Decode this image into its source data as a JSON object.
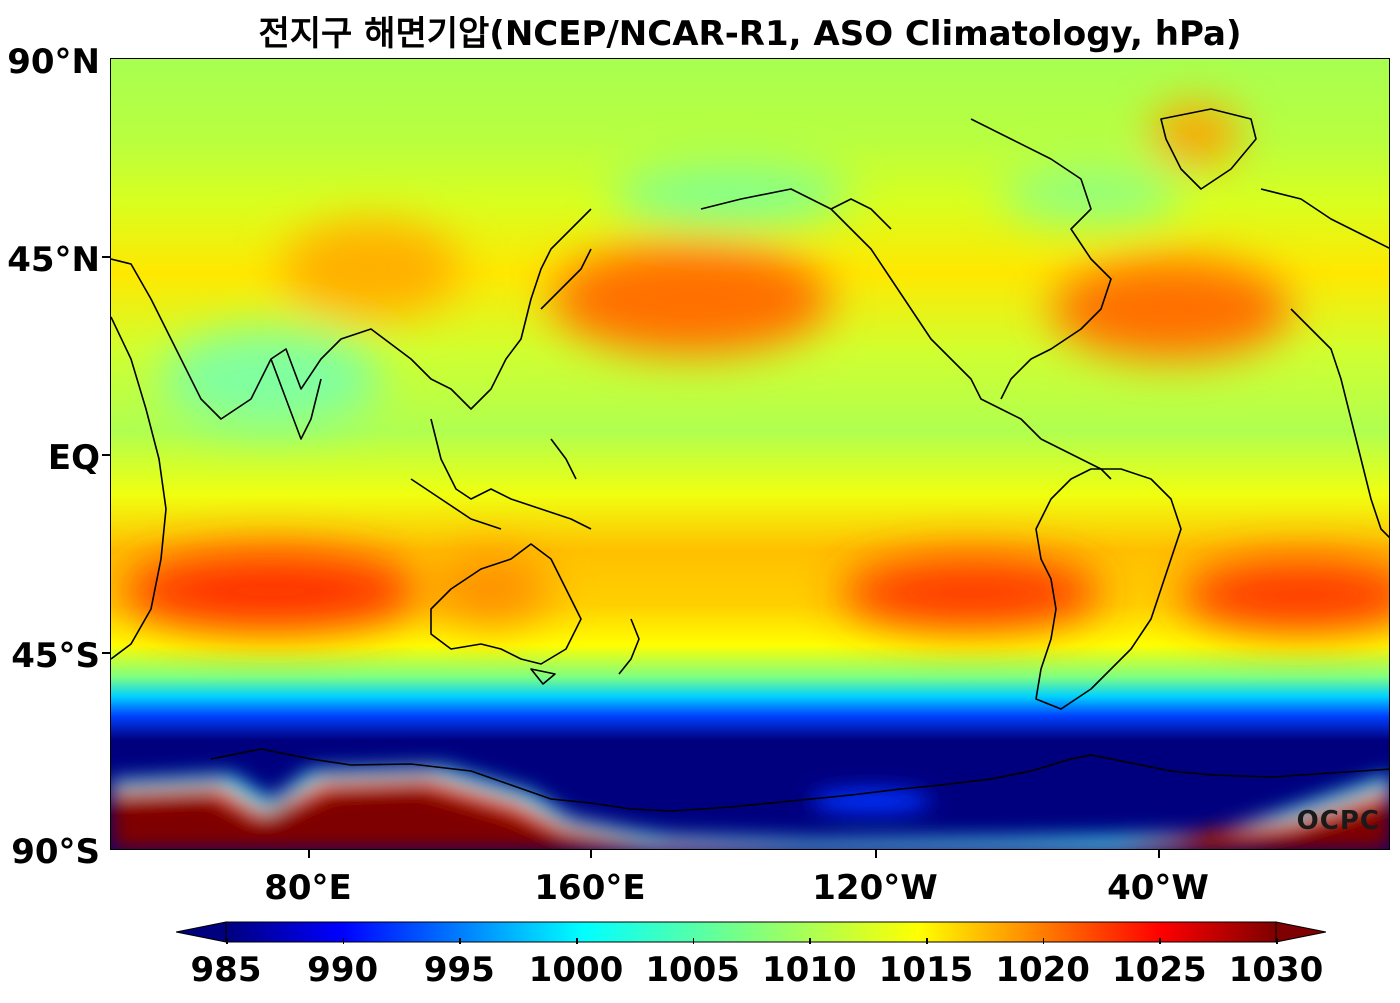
{
  "title": "전지구 해면기압(NCEP/NCAR-R1, ASO Climatology, hPa)",
  "watermark": "OCPC",
  "y_ticks": [
    "90°N",
    "45°N",
    "EQ",
    "45°S",
    "90°S"
  ],
  "x_ticks": [
    "80°E",
    "160°E",
    "120°W",
    "40°W"
  ],
  "colorbar": {
    "ticks": [
      "985",
      "990",
      "995",
      "1000",
      "1005",
      "1010",
      "1015",
      "1020",
      "1025",
      "1030"
    ],
    "min": 985,
    "max": 1030,
    "extend": "both",
    "colormap": "jet"
  },
  "colors": {
    "dark_blue": "#00007f",
    "blue": "#0000ff",
    "cyan": "#00ffff",
    "light_green": "#9fff5f",
    "yellow": "#ffff00",
    "orange": "#ff9f00",
    "red": "#ff2000",
    "dark_red": "#7f0000"
  }
}
